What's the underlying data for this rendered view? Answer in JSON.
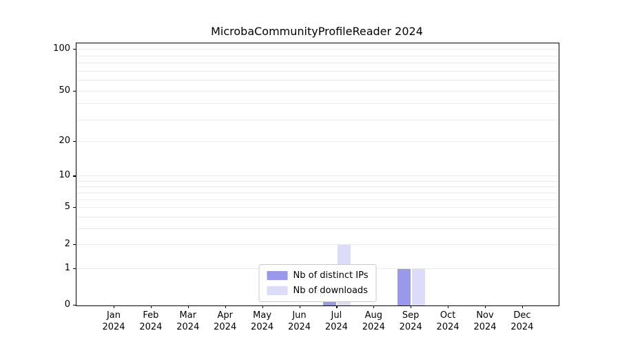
{
  "chart_data": {
    "type": "bar",
    "title": "MicrobaCommunityProfileReader 2024",
    "categories": [
      "Jan",
      "Feb",
      "Mar",
      "Apr",
      "May",
      "Jun",
      "Jul",
      "Aug",
      "Sep",
      "Oct",
      "Nov",
      "Dec"
    ],
    "x_year_label": "2024",
    "series": [
      {
        "name": "Nb of distinct IPs",
        "color": "#9999ec",
        "values": [
          0,
          0,
          0,
          0,
          0,
          0,
          1,
          0,
          1,
          0,
          0,
          0
        ]
      },
      {
        "name": "Nb of downloads",
        "color": "#dcdcf8",
        "values": [
          0,
          0,
          0,
          0,
          0,
          0,
          2,
          0,
          1,
          0,
          0,
          0
        ]
      }
    ],
    "yticks": [
      0,
      1,
      2,
      5,
      10,
      20,
      50,
      100
    ],
    "grid_values": [
      1,
      2,
      3,
      4,
      5,
      6,
      7,
      8,
      9,
      10,
      20,
      30,
      40,
      50,
      60,
      70,
      80,
      90,
      100
    ],
    "ylim": [
      0,
      100
    ],
    "yscale": "symlog",
    "grid": "horizontal",
    "legend_position": "lower-center",
    "grid_color": "#e9e9e9"
  }
}
